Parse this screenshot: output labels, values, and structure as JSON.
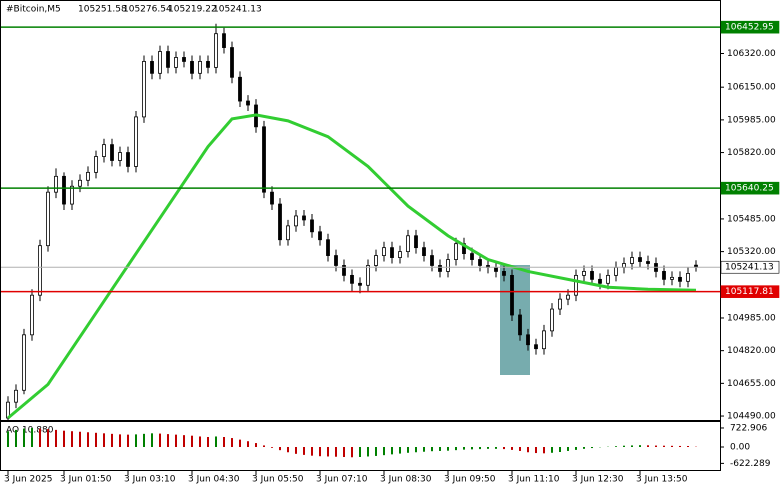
{
  "chart_data": {
    "type": "candlestick",
    "title": "#Bitcoin,M5",
    "header_ohlc": [
      105251.58,
      105276.54,
      105219.22,
      105241.13
    ],
    "ylim": [
      104470,
      106580
    ],
    "yticks": [
      {
        "value": 106320,
        "label": "106320.00"
      },
      {
        "value": 106150,
        "label": "106150.00"
      },
      {
        "value": 105985,
        "label": "105985.00"
      },
      {
        "value": 105820,
        "label": "105820.00"
      },
      {
        "value": 105485,
        "label": "105485.00"
      },
      {
        "value": 105320,
        "label": "105320.00"
      },
      {
        "value": 104985,
        "label": "104985.00"
      },
      {
        "value": 104820,
        "label": "104820.00"
      },
      {
        "value": 104655,
        "label": "104655.00"
      },
      {
        "value": 104490,
        "label": "104490.00"
      }
    ],
    "xticks": [
      {
        "value": 0,
        "label": "3 Jun 2025"
      },
      {
        "value": 7,
        "label": "3 Jun 01:50"
      },
      {
        "value": 15,
        "label": "3 Jun 03:10"
      },
      {
        "value": 23,
        "label": "3 Jun 04:30"
      },
      {
        "value": 31,
        "label": "3 Jun 05:50"
      },
      {
        "value": 39,
        "label": "3 Jun 07:10"
      },
      {
        "value": 47,
        "label": "3 Jun 08:30"
      },
      {
        "value": 55,
        "label": "3 Jun 09:50"
      },
      {
        "value": 63,
        "label": "3 Jun 11:10"
      },
      {
        "value": 71,
        "label": "3 Jun 12:30"
      },
      {
        "value": 79,
        "label": "3 Jun 13:50"
      }
    ],
    "levels": [
      {
        "value": 106452.95,
        "color": "#008000"
      },
      {
        "value": 105640.25,
        "color": "#008000"
      },
      {
        "value": 105117.81,
        "color": "#e00000"
      },
      {
        "value": 105241.13,
        "color": "#b0b0b0"
      }
    ],
    "candles": [
      [
        104480,
        104590,
        104460,
        104560
      ],
      [
        104560,
        104650,
        104530,
        104620
      ],
      [
        104620,
        104930,
        104600,
        104900
      ],
      [
        104900,
        105130,
        104870,
        105100
      ],
      [
        105100,
        105380,
        105070,
        105350
      ],
      [
        105350,
        105650,
        105320,
        105620
      ],
      [
        105620,
        105740,
        105590,
        105700
      ],
      [
        105700,
        105720,
        105530,
        105560
      ],
      [
        105560,
        105680,
        105530,
        105650
      ],
      [
        105650,
        105710,
        105620,
        105680
      ],
      [
        105680,
        105750,
        105650,
        105720
      ],
      [
        105720,
        105830,
        105690,
        105800
      ],
      [
        105800,
        105890,
        105770,
        105860
      ],
      [
        105860,
        105890,
        105750,
        105780
      ],
      [
        105780,
        105850,
        105750,
        105820
      ],
      [
        105820,
        105850,
        105720,
        105750
      ],
      [
        105750,
        106030,
        105720,
        106000
      ],
      [
        106000,
        106310,
        105970,
        106280
      ],
      [
        106280,
        106310,
        106190,
        106220
      ],
      [
        106220,
        106360,
        106190,
        106330
      ],
      [
        106330,
        106360,
        106220,
        106250
      ],
      [
        106250,
        106330,
        106220,
        106300
      ],
      [
        106300,
        106330,
        106250,
        106280
      ],
      [
        106280,
        106310,
        106190,
        106220
      ],
      [
        106220,
        106310,
        106190,
        106280
      ],
      [
        106280,
        106310,
        106220,
        106250
      ],
      [
        106250,
        106470,
        106220,
        106420
      ],
      [
        106420,
        106450,
        106320,
        106350
      ],
      [
        106350,
        106380,
        106170,
        106200
      ],
      [
        106200,
        106230,
        106050,
        106080
      ],
      [
        106080,
        106110,
        106030,
        106060
      ],
      [
        106060,
        106090,
        105920,
        105950
      ],
      [
        105950,
        105980,
        105590,
        105620
      ],
      [
        105620,
        105650,
        105530,
        105560
      ],
      [
        105560,
        105590,
        105350,
        105380
      ],
      [
        105380,
        105480,
        105350,
        105450
      ],
      [
        105450,
        105530,
        105420,
        105500
      ],
      [
        105500,
        105530,
        105450,
        105480
      ],
      [
        105480,
        105510,
        105390,
        105420
      ],
      [
        105420,
        105450,
        105350,
        105380
      ],
      [
        105380,
        105410,
        105270,
        105300
      ],
      [
        105300,
        105330,
        105220,
        105250
      ],
      [
        105250,
        105280,
        105170,
        105200
      ],
      [
        105200,
        105230,
        105120,
        105160
      ],
      [
        105160,
        105190,
        105110,
        105150
      ],
      [
        105150,
        105280,
        105120,
        105250
      ],
      [
        105250,
        105330,
        105220,
        105300
      ],
      [
        105300,
        105370,
        105270,
        105340
      ],
      [
        105340,
        105370,
        105260,
        105290
      ],
      [
        105290,
        105350,
        105260,
        105320
      ],
      [
        105320,
        105430,
        105290,
        105400
      ],
      [
        105400,
        105430,
        105310,
        105340
      ],
      [
        105340,
        105370,
        105270,
        105300
      ],
      [
        105300,
        105330,
        105220,
        105250
      ],
      [
        105250,
        105280,
        105190,
        105220
      ],
      [
        105220,
        105310,
        105190,
        105280
      ],
      [
        105280,
        105390,
        105250,
        105360
      ],
      [
        105360,
        105390,
        105280,
        105310
      ],
      [
        105310,
        105340,
        105250,
        105280
      ],
      [
        105280,
        105310,
        105220,
        105250
      ],
      [
        105250,
        105280,
        105210,
        105240
      ],
      [
        105240,
        105270,
        105190,
        105220
      ],
      [
        105220,
        105250,
        105170,
        105200
      ],
      [
        105200,
        105230,
        104970,
        105000
      ],
      [
        105000,
        105030,
        104870,
        104900
      ],
      [
        104900,
        104930,
        104820,
        104850
      ],
      [
        104850,
        104880,
        104800,
        104830
      ],
      [
        104830,
        104950,
        104800,
        104920
      ],
      [
        104920,
        105060,
        104890,
        105030
      ],
      [
        105030,
        105110,
        105000,
        105080
      ],
      [
        105080,
        105130,
        105050,
        105100
      ],
      [
        105100,
        105230,
        105070,
        105200
      ],
      [
        105200,
        105250,
        105170,
        105220
      ],
      [
        105220,
        105250,
        105150,
        105180
      ],
      [
        105180,
        105210,
        105130,
        105160
      ],
      [
        105160,
        105230,
        105130,
        105200
      ],
      [
        105200,
        105270,
        105170,
        105240
      ],
      [
        105240,
        105290,
        105210,
        105260
      ],
      [
        105260,
        105320,
        105230,
        105290
      ],
      [
        105290,
        105320,
        105240,
        105270
      ],
      [
        105270,
        105300,
        105230,
        105260
      ],
      [
        105260,
        105290,
        105190,
        105220
      ],
      [
        105220,
        105250,
        105150,
        105180
      ],
      [
        105180,
        105220,
        105150,
        105190
      ],
      [
        105190,
        105220,
        105140,
        105170
      ],
      [
        105170,
        105240,
        105140,
        105210
      ],
      [
        105251.58,
        105276.54,
        105219.22,
        105241.13
      ]
    ],
    "ma": {
      "color": "#32cd32",
      "x": [
        0,
        5,
        10,
        15,
        20,
        25,
        28,
        31,
        35,
        40,
        45,
        50,
        55,
        60,
        65,
        70,
        75,
        80,
        86
      ],
      "values": [
        104480,
        104650,
        104950,
        105250,
        105550,
        105850,
        105990,
        106010,
        105980,
        105900,
        105750,
        105550,
        105400,
        105280,
        105220,
        105180,
        105140,
        105130,
        105125
      ]
    },
    "ao": {
      "title": "AO 10.880",
      "ylim": [
        -874,
        912
      ],
      "yticks": [
        722.906,
        {
          "value": 0,
          "label": "0.00"
        },
        -622.289
      ],
      "up_color": "#008000",
      "down_color": "#c00000",
      "values": [
        600,
        650,
        700,
        720,
        700,
        680,
        650,
        620,
        600,
        580,
        560,
        540,
        520,
        500,
        480,
        470,
        480,
        500,
        520,
        510,
        490,
        470,
        450,
        430,
        400,
        380,
        400,
        380,
        340,
        280,
        220,
        150,
        60,
        -30,
        -120,
        -200,
        -260,
        -300,
        -330,
        -350,
        -360,
        -370,
        -380,
        -390,
        -380,
        -360,
        -340,
        -310,
        -280,
        -250,
        -220,
        -200,
        -180,
        -160,
        -150,
        -140,
        -120,
        -100,
        -90,
        -80,
        -70,
        -70,
        -80,
        -110,
        -150,
        -200,
        -230,
        -240,
        -220,
        -190,
        -150,
        -110,
        -70,
        -40,
        -10,
        10,
        30,
        50,
        60,
        70,
        65,
        55,
        50,
        45,
        40,
        38,
        10.88
      ]
    }
  }
}
